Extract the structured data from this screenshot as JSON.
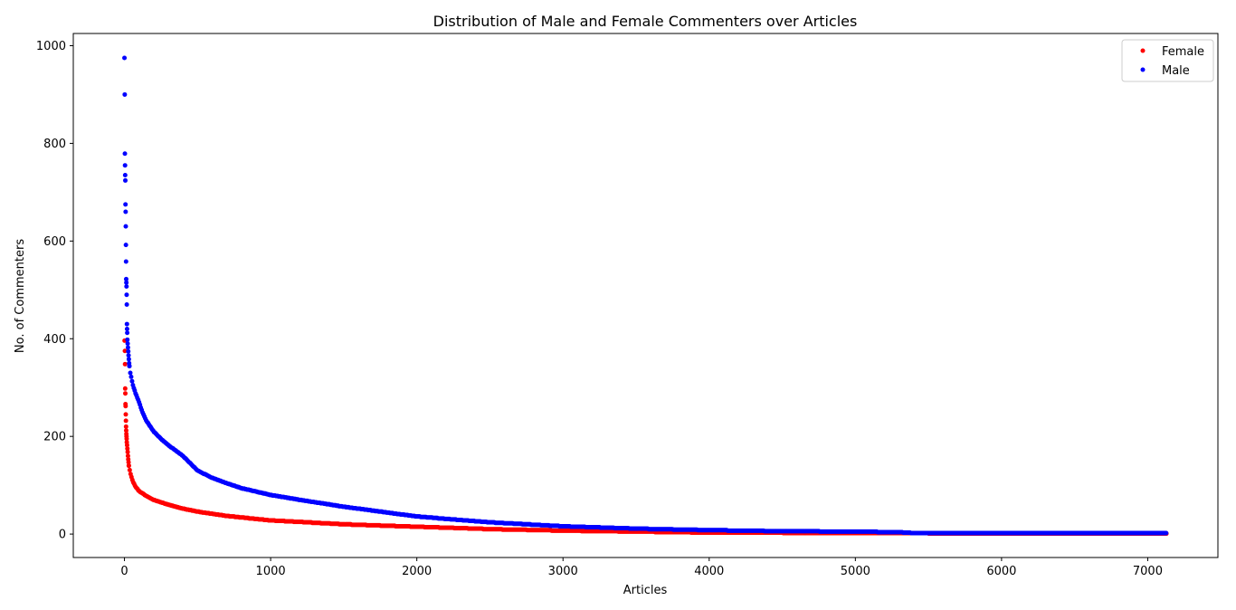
{
  "chart_data": {
    "type": "scatter",
    "title": "Distribution of Male and Female Commenters over Articles",
    "xlabel": "Articles",
    "ylabel": "No. of Commenters",
    "xlim": [
      -350,
      7480
    ],
    "ylim": [
      -48,
      1025
    ],
    "xticks": [
      0,
      1000,
      2000,
      3000,
      4000,
      5000,
      6000,
      7000
    ],
    "yticks": [
      0,
      200,
      400,
      600,
      800,
      1000
    ],
    "grid": false,
    "legend_position": "top-right",
    "marker_size": 3,
    "total_articles": 7130,
    "series": [
      {
        "name": "Female",
        "color": "#ff0000",
        "head": [
          [
            1,
            396
          ],
          [
            3,
            375
          ],
          [
            4,
            348
          ],
          [
            5,
            298
          ],
          [
            6,
            288
          ],
          [
            7,
            266
          ],
          [
            8,
            262
          ],
          [
            9,
            245
          ],
          [
            10,
            232
          ],
          [
            11,
            220
          ],
          [
            12,
            212
          ],
          [
            13,
            205
          ],
          [
            14,
            200
          ],
          [
            15,
            195
          ],
          [
            16,
            188
          ],
          [
            18,
            182
          ],
          [
            20,
            175
          ],
          [
            22,
            168
          ],
          [
            24,
            160
          ],
          [
            26,
            153
          ],
          [
            28,
            147
          ],
          [
            30,
            140
          ]
        ],
        "curve": [
          [
            30,
            140
          ],
          [
            40,
            125
          ],
          [
            50,
            115
          ],
          [
            60,
            106
          ],
          [
            80,
            95
          ],
          [
            100,
            88
          ],
          [
            150,
            78
          ],
          [
            200,
            70
          ],
          [
            300,
            60
          ],
          [
            400,
            52
          ],
          [
            500,
            46
          ],
          [
            700,
            37
          ],
          [
            1000,
            28
          ],
          [
            1500,
            20
          ],
          [
            2000,
            15
          ],
          [
            2500,
            10
          ],
          [
            3000,
            7
          ],
          [
            3500,
            5
          ],
          [
            4000,
            3
          ],
          [
            5000,
            2
          ],
          [
            6000,
            1
          ],
          [
            7130,
            1
          ]
        ]
      },
      {
        "name": "Male",
        "color": "#0000ff",
        "head": [
          [
            0,
            975
          ],
          [
            2,
            900
          ],
          [
            3,
            779
          ],
          [
            4,
            755
          ],
          [
            5,
            735
          ],
          [
            6,
            724
          ],
          [
            7,
            675
          ],
          [
            8,
            660
          ],
          [
            9,
            630
          ],
          [
            10,
            592
          ],
          [
            11,
            558
          ],
          [
            12,
            522
          ],
          [
            13,
            515
          ],
          [
            14,
            507
          ],
          [
            15,
            490
          ],
          [
            16,
            470
          ],
          [
            17,
            430
          ],
          [
            18,
            420
          ],
          [
            19,
            412
          ],
          [
            20,
            398
          ],
          [
            22,
            390
          ],
          [
            24,
            382
          ],
          [
            26,
            374
          ],
          [
            28,
            366
          ],
          [
            30,
            358
          ],
          [
            32,
            350
          ],
          [
            34,
            344
          ]
        ],
        "curve": [
          [
            34,
            344
          ],
          [
            40,
            330
          ],
          [
            50,
            316
          ],
          [
            60,
            302
          ],
          [
            80,
            285
          ],
          [
            100,
            270
          ],
          [
            120,
            252
          ],
          [
            150,
            232
          ],
          [
            200,
            210
          ],
          [
            250,
            195
          ],
          [
            300,
            182
          ],
          [
            400,
            160
          ],
          [
            500,
            130
          ],
          [
            600,
            115
          ],
          [
            700,
            104
          ],
          [
            800,
            94
          ],
          [
            1000,
            80
          ],
          [
            1200,
            70
          ],
          [
            1500,
            56
          ],
          [
            2000,
            36
          ],
          [
            2500,
            24
          ],
          [
            3000,
            16
          ],
          [
            3500,
            11
          ],
          [
            4000,
            8
          ],
          [
            4500,
            6
          ],
          [
            5000,
            5
          ],
          [
            5300,
            4
          ],
          [
            5400,
            2
          ],
          [
            6000,
            2
          ],
          [
            7130,
            2
          ]
        ]
      }
    ]
  }
}
